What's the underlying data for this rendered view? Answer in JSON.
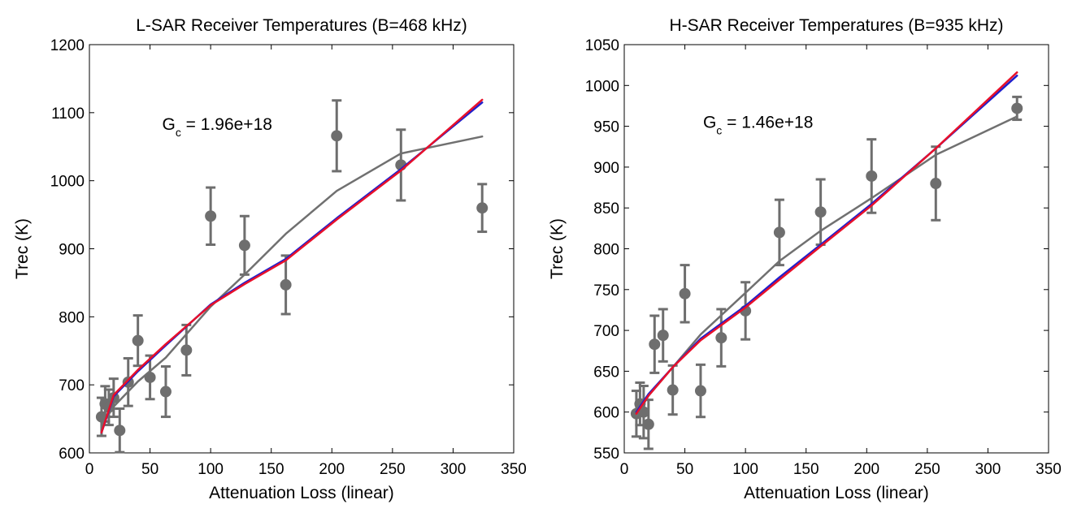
{
  "chart_data": [
    {
      "type": "scatter",
      "title": "L-SAR Receiver Temperatures (B=468 kHz)",
      "xlabel": "Attenuation Loss (linear)",
      "ylabel": "Trec (K)",
      "xlim": [
        0,
        350
      ],
      "ylim": [
        600,
        1200
      ],
      "xticks": [
        0,
        50,
        100,
        150,
        200,
        250,
        300,
        350
      ],
      "yticks": [
        600,
        700,
        800,
        900,
        1000,
        1100,
        1200
      ],
      "grid": false,
      "annotation": {
        "main": "G",
        "sub": "c",
        "rest": " = 1.96e+18",
        "x": 60,
        "y": 1075
      },
      "points": {
        "x": [
          10,
          13,
          16,
          20,
          25,
          32,
          40,
          50,
          63,
          80,
          100,
          128,
          162,
          204,
          257,
          324
        ],
        "y": [
          653,
          672,
          667,
          681,
          633,
          704,
          765,
          711,
          690,
          751,
          948,
          905,
          847,
          1066,
          1023,
          960
        ],
        "err": [
          28,
          26,
          26,
          28,
          32,
          35,
          37,
          32,
          37,
          37,
          42,
          43,
          43,
          52,
          52,
          35
        ]
      },
      "series": [
        {
          "color": "#707070",
          "x": [
            10,
            20,
            40,
            63,
            100,
            128,
            162,
            204,
            257,
            324
          ],
          "y": [
            640,
            668,
            705,
            740,
            815,
            862,
            922,
            985,
            1040,
            1065
          ]
        },
        {
          "color": "#1f1fcc",
          "x": [
            10,
            20,
            40,
            63,
            100,
            128,
            162,
            204,
            257,
            324
          ],
          "y": [
            630,
            683,
            720,
            758,
            818,
            850,
            885,
            945,
            1017,
            1115
          ]
        },
        {
          "color": "#e8102a",
          "x": [
            10,
            20,
            40,
            63,
            100,
            128,
            162,
            204,
            257,
            324
          ],
          "y": [
            630,
            685,
            722,
            760,
            817,
            848,
            883,
            943,
            1015,
            1119
          ]
        }
      ]
    },
    {
      "type": "scatter",
      "title": "H-SAR Receiver Temperatures (B=935 kHz)",
      "xlabel": "Attenuation Loss (linear)",
      "ylabel": "Trec (K)",
      "xlim": [
        0,
        350
      ],
      "ylim": [
        550,
        1050
      ],
      "xticks": [
        0,
        50,
        100,
        150,
        200,
        250,
        300,
        350
      ],
      "yticks": [
        550,
        600,
        650,
        700,
        750,
        800,
        850,
        900,
        950,
        1000,
        1050
      ],
      "grid": false,
      "annotation": {
        "main": "G",
        "sub": "c",
        "rest": " = 1.46e+18",
        "x": 65,
        "y": 948
      },
      "points": {
        "x": [
          10,
          13,
          16,
          20,
          25,
          32,
          40,
          50,
          63,
          80,
          100,
          128,
          162,
          204,
          257,
          324
        ],
        "y": [
          598,
          610,
          600,
          585,
          683,
          694,
          627,
          745,
          626,
          691,
          724,
          820,
          845,
          889,
          880,
          972
        ],
        "err": [
          28,
          26,
          32,
          30,
          35,
          32,
          30,
          35,
          32,
          35,
          35,
          40,
          40,
          45,
          45,
          14
        ]
      },
      "series": [
        {
          "color": "#707070",
          "x": [
            10,
            20,
            40,
            63,
            100,
            128,
            162,
            204,
            257,
            324
          ],
          "y": [
            595,
            620,
            655,
            695,
            746,
            785,
            822,
            862,
            915,
            962
          ]
        },
        {
          "color": "#1f1fcc",
          "x": [
            10,
            20,
            40,
            63,
            100,
            128,
            162,
            204,
            257,
            324
          ],
          "y": [
            600,
            622,
            655,
            690,
            730,
            765,
            805,
            855,
            923,
            1012
          ]
        },
        {
          "color": "#e8102a",
          "x": [
            10,
            20,
            40,
            63,
            100,
            128,
            162,
            204,
            257,
            324
          ],
          "y": [
            598,
            620,
            655,
            688,
            728,
            762,
            803,
            853,
            923,
            1016
          ]
        }
      ]
    }
  ]
}
